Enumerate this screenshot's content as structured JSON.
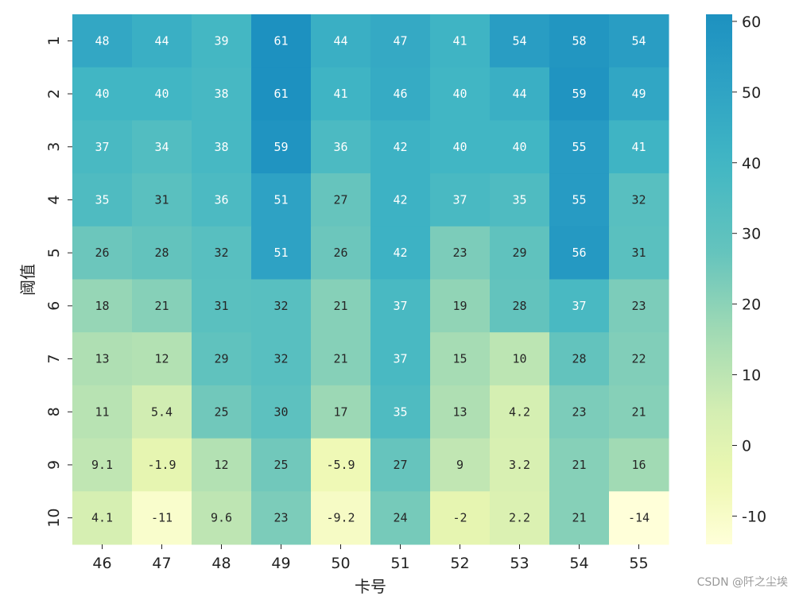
{
  "chart_data": {
    "type": "heatmap",
    "title": "",
    "xlabel": "卡号",
    "ylabel": "阈值",
    "x_categories": [
      "46",
      "47",
      "48",
      "49",
      "50",
      "51",
      "52",
      "53",
      "54",
      "55"
    ],
    "y_categories": [
      "1",
      "2",
      "3",
      "4",
      "5",
      "6",
      "7",
      "8",
      "9",
      "10"
    ],
    "values": [
      [
        48,
        44,
        39,
        61,
        44,
        47,
        41,
        54,
        58,
        54
      ],
      [
        40,
        40,
        38,
        61,
        41,
        46,
        40,
        44,
        59,
        49
      ],
      [
        37,
        34,
        38,
        59,
        36,
        42,
        40,
        40,
        55,
        41
      ],
      [
        35,
        31,
        36,
        51,
        27,
        42,
        37,
        35,
        55,
        32
      ],
      [
        26,
        28,
        32,
        51,
        26,
        42,
        23,
        29,
        56,
        31
      ],
      [
        18,
        21,
        31,
        32,
        21,
        37,
        19,
        28,
        37,
        23
      ],
      [
        13,
        12,
        29,
        32,
        21,
        37,
        15,
        10,
        28,
        22
      ],
      [
        11,
        5.4,
        25,
        30,
        17,
        35,
        13,
        4.2,
        23,
        21
      ],
      [
        9.1,
        -1.9,
        12,
        25,
        -5.9,
        27,
        9,
        3.2,
        21,
        16
      ],
      [
        4.1,
        -11,
        9.6,
        23,
        -9.2,
        24,
        -2,
        2.2,
        21,
        -14
      ]
    ],
    "labels": [
      [
        "48",
        "44",
        "39",
        "61",
        "44",
        "47",
        "41",
        "54",
        "58",
        "54"
      ],
      [
        "40",
        "40",
        "38",
        "61",
        "41",
        "46",
        "40",
        "44",
        "59",
        "49"
      ],
      [
        "37",
        "34",
        "38",
        "59",
        "36",
        "42",
        "40",
        "40",
        "55",
        "41"
      ],
      [
        "35",
        "31",
        "36",
        "51",
        "27",
        "42",
        "37",
        "35",
        "55",
        "32"
      ],
      [
        "26",
        "28",
        "32",
        "51",
        "26",
        "42",
        "23",
        "29",
        "56",
        "31"
      ],
      [
        "18",
        "21",
        "31",
        "32",
        "21",
        "37",
        "19",
        "28",
        "37",
        "23"
      ],
      [
        "13",
        "12",
        "29",
        "32",
        "21",
        "37",
        "15",
        "10",
        "28",
        "22"
      ],
      [
        "11",
        "5.4",
        "25",
        "30",
        "17",
        "35",
        "13",
        "4.2",
        "23",
        "21"
      ],
      [
        "9.1",
        "-1.9",
        "12",
        "25",
        "-5.9",
        "27",
        "9",
        "3.2",
        "21",
        "16"
      ],
      [
        "4.1",
        "-11",
        "9.6",
        "23",
        "-9.2",
        "24",
        "-2",
        "2.2",
        "21",
        "-14"
      ]
    ],
    "colorscale": "YlGnBu",
    "colorbar": {
      "range": [
        -14,
        61
      ],
      "ticks": [
        60,
        50,
        40,
        30,
        20,
        10,
        0,
        -10
      ]
    },
    "grid": false
  },
  "watermark": "CSDN @阡之尘埃"
}
